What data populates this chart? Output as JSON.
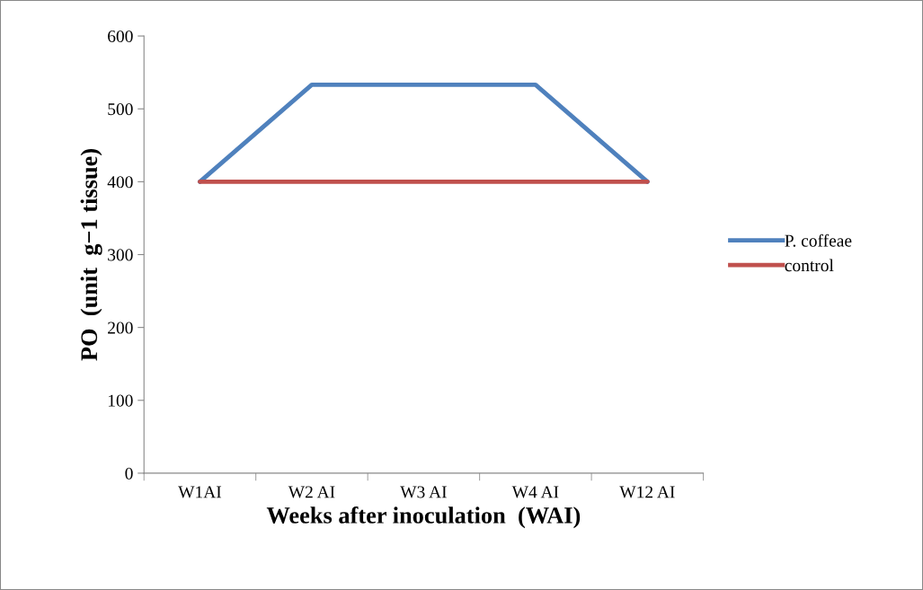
{
  "chart_data": {
    "type": "line",
    "xlabel": "Weeks after inoculation  (WAI)",
    "ylabel": "PO  (unit  g−1 tissue)",
    "categories": [
      "W1AI",
      "W2 AI",
      "W3 AI",
      "W4 AI",
      "W12 AI"
    ],
    "series": [
      {
        "name": "P. coffeae",
        "color": "#4f81bd",
        "values": [
          400,
          533,
          533,
          533,
          400
        ]
      },
      {
        "name": "control",
        "color": "#c0504d",
        "values": [
          400,
          400,
          400,
          400,
          400
        ]
      }
    ],
    "ylim": [
      0,
      600
    ],
    "yticks": [
      0,
      100,
      200,
      300,
      400,
      500,
      600
    ],
    "grid": false,
    "legend": "right",
    "marker": "none",
    "line_style": "solid"
  }
}
